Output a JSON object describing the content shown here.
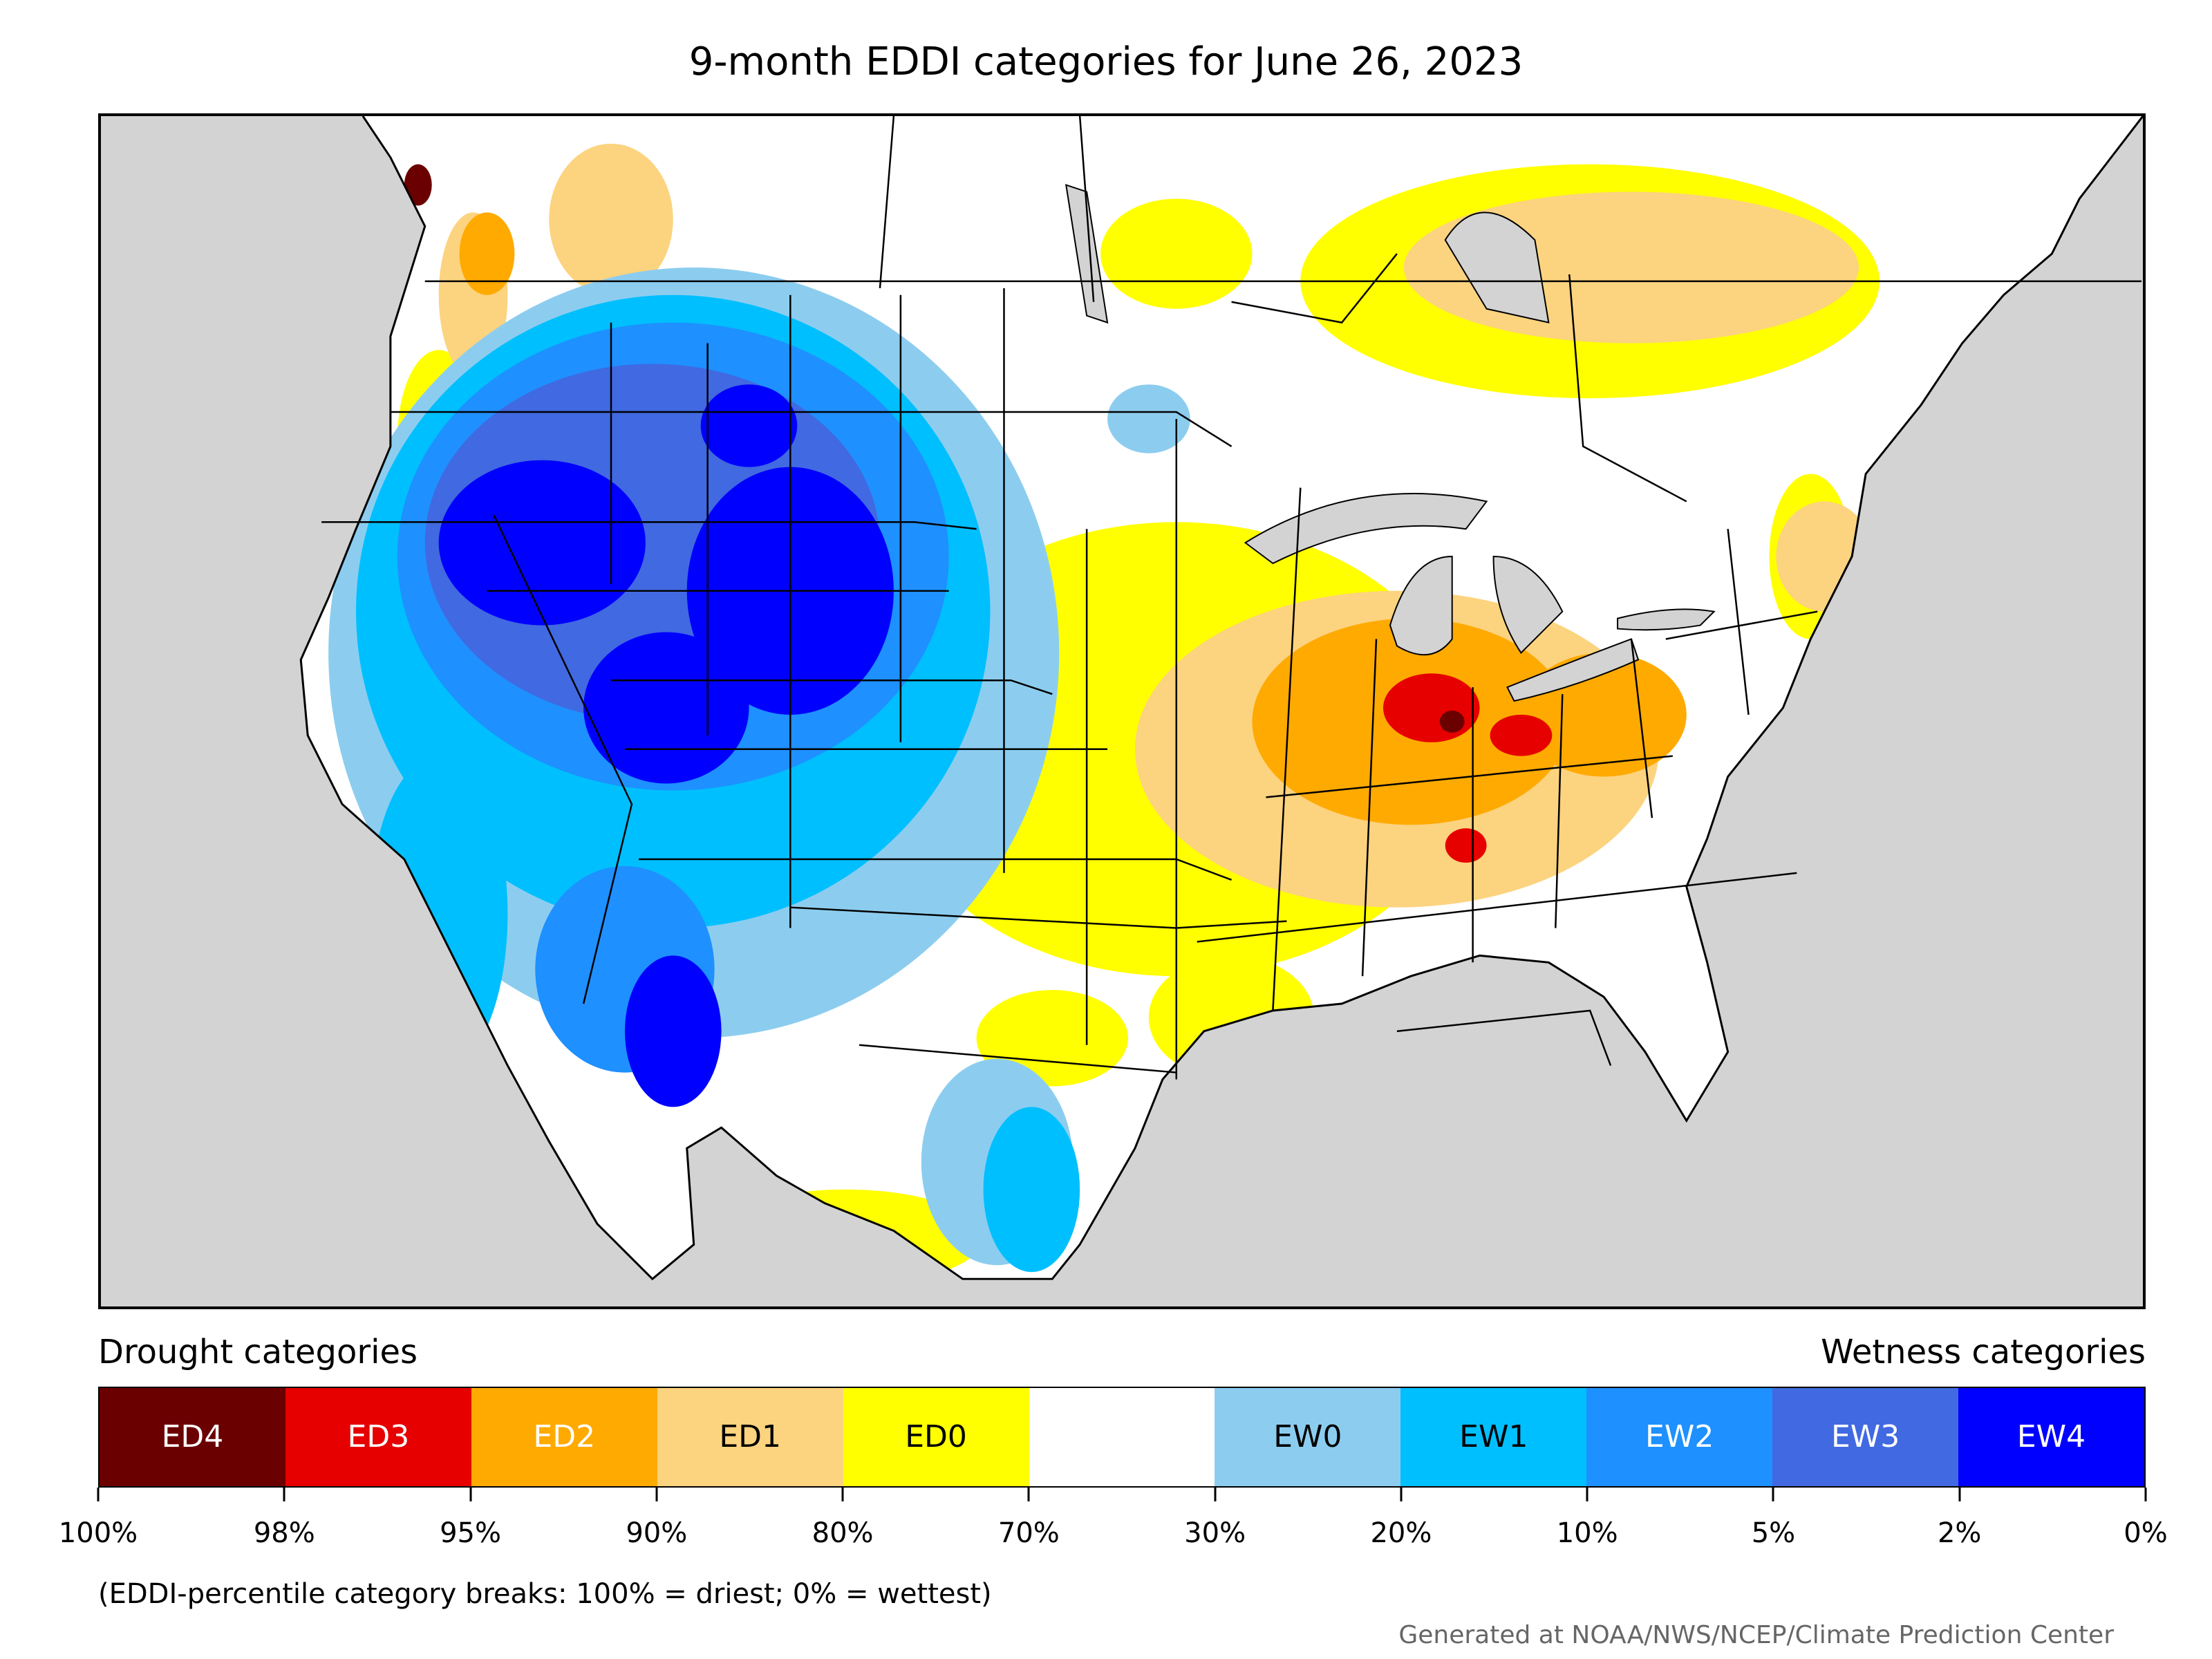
{
  "title": "9-month EDDI categories for June 26, 2023",
  "legend": {
    "drought_header": "Drought categories",
    "wetness_header": "Wetness categories",
    "categories": [
      {
        "label": "ED4",
        "color": "#6b0000",
        "text_color": "#ffffff"
      },
      {
        "label": "ED3",
        "color": "#e60000",
        "text_color": "#ffffff"
      },
      {
        "label": "ED2",
        "color": "#ffaa00",
        "text_color": "#ffffff"
      },
      {
        "label": "ED1",
        "color": "#fcd37f",
        "text_color": "#000000"
      },
      {
        "label": "ED0",
        "color": "#ffff00",
        "text_color": "#000000"
      },
      {
        "label": "",
        "color": "#ffffff",
        "text_color": "#000000"
      },
      {
        "label": "EW0",
        "color": "#8ccdef",
        "text_color": "#000000"
      },
      {
        "label": "EW1",
        "color": "#00bfff",
        "text_color": "#000000"
      },
      {
        "label": "EW2",
        "color": "#1e90ff",
        "text_color": "#ffffff"
      },
      {
        "label": "EW3",
        "color": "#4169e1",
        "text_color": "#ffffff"
      },
      {
        "label": "EW4",
        "color": "#0000ff",
        "text_color": "#ffffff"
      }
    ],
    "tick_labels": [
      "100%",
      "98%",
      "95%",
      "90%",
      "80%",
      "70%",
      "30%",
      "20%",
      "10%",
      "5%",
      "2%",
      "0%"
    ]
  },
  "note": "(EDDI-percentile category breaks: 100% = driest; 0% = wettest)",
  "credit": "Generated at NOAA/NWS/NCEP/Climate Prediction Center",
  "map_colors": {
    "ocean": "#d3d3d3",
    "land": "#ffffff",
    "lakes": "#d3d3d3",
    "borders": "#000000"
  }
}
